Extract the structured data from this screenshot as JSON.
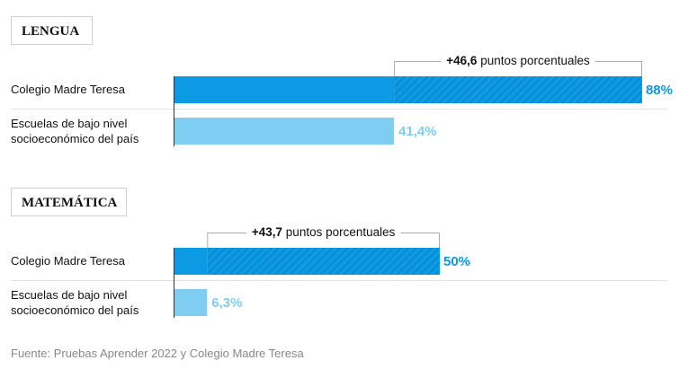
{
  "chart_data": {
    "type": "bar",
    "orientation": "horizontal",
    "xlim": [
      0,
      100
    ],
    "colors": {
      "school": "#0b9ae3",
      "national": "#7fcdf0",
      "hatch": "#0a7fc0",
      "bracket": "#aaaaaa",
      "divider": "#e3e3e3"
    },
    "sections": [
      {
        "title": "LENGUA",
        "categories": [
          "Colegio Madre Teresa",
          "Escuelas de bajo nivel socioeconómico del país"
        ],
        "values": [
          88,
          41.4
        ],
        "value_labels": [
          "88%",
          "41,4%"
        ],
        "difference": {
          "value": "+46,6",
          "text": " puntos porcentuales"
        }
      },
      {
        "title": "MATEMÁTICA",
        "categories": [
          "Colegio Madre Teresa",
          "Escuelas de bajo nivel socioeconómico del país"
        ],
        "values": [
          50,
          6.3
        ],
        "value_labels": [
          "50%",
          "6,3%"
        ],
        "difference": {
          "value": "+43,7",
          "text": " puntos porcentuales"
        }
      }
    ]
  },
  "source": "Fuente: Pruebas Aprender 2022 y Colegio Madre Teresa"
}
